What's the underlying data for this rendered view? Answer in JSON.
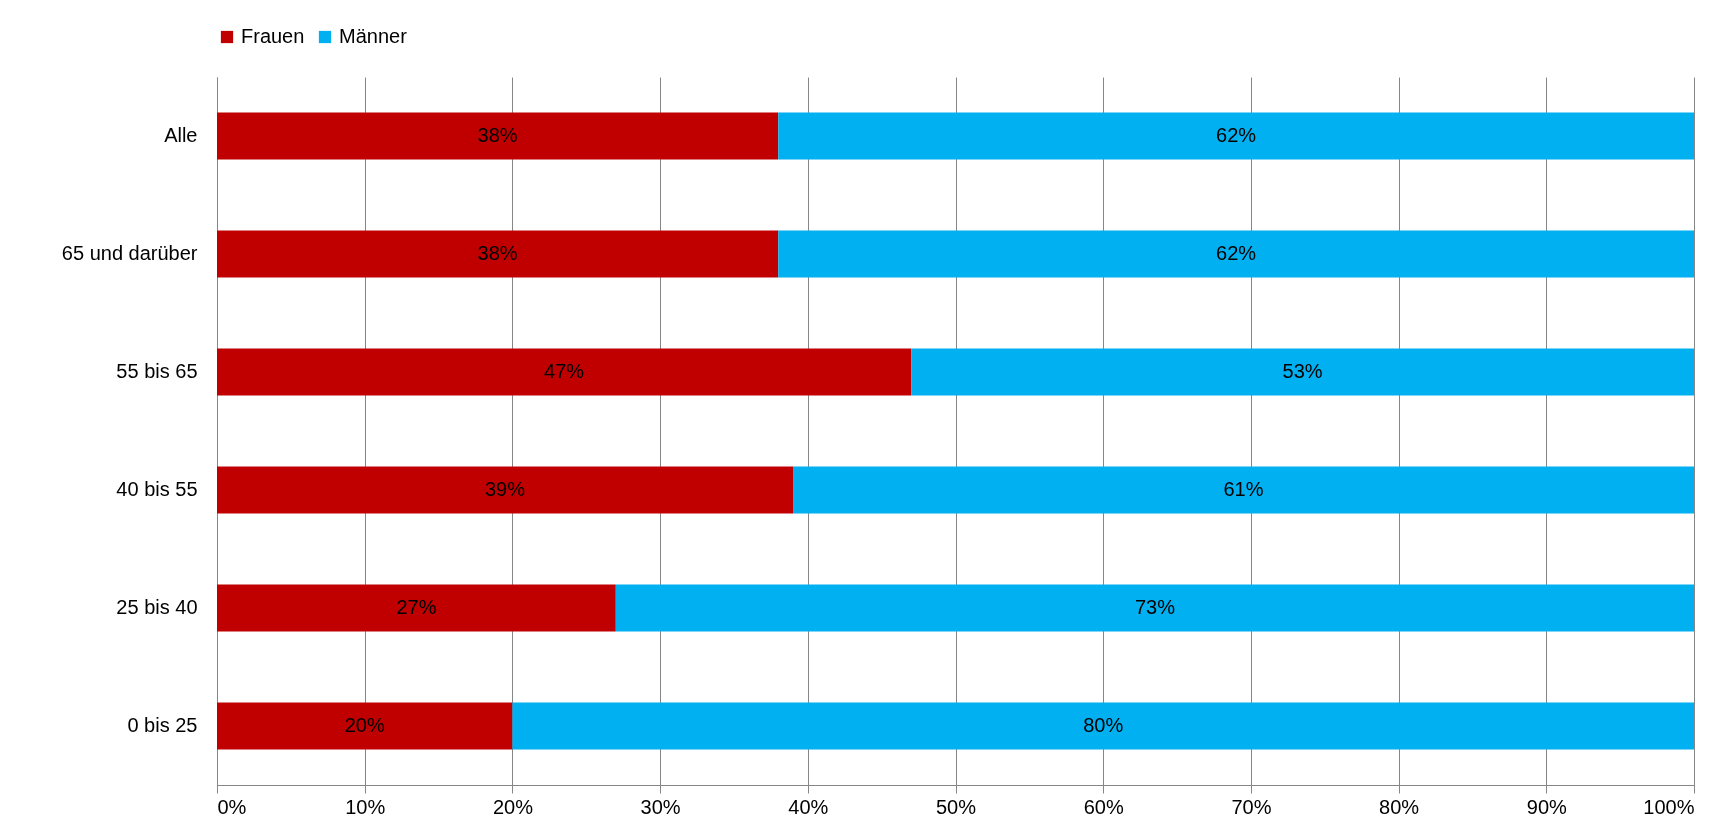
{
  "chart_data": {
    "type": "bar",
    "orientation": "horizontal",
    "stacked": true,
    "categories": [
      "Alle",
      "65 und darüber",
      "55 bis 65",
      "40 bis 55",
      "25 bis 40",
      "0 bis 25"
    ],
    "series": [
      {
        "name": "Frauen",
        "color": "#c00000",
        "values": [
          38,
          38,
          47,
          39,
          27,
          20
        ],
        "value_labels": [
          "38%",
          "38%",
          "47%",
          "39%",
          "27%",
          "20%"
        ]
      },
      {
        "name": "Männer",
        "color": "#00b0f0",
        "values": [
          62,
          62,
          53,
          61,
          73,
          80
        ],
        "value_labels": [
          "62%",
          "62%",
          "53%",
          "61%",
          "73%",
          "80%"
        ]
      }
    ],
    "xlim": [
      0,
      100
    ],
    "xticks": [
      {
        "value": 0,
        "label": "0%"
      },
      {
        "value": 10,
        "label": "10%"
      },
      {
        "value": 20,
        "label": "20%"
      },
      {
        "value": 30,
        "label": "30%"
      },
      {
        "value": 40,
        "label": "40%"
      },
      {
        "value": 50,
        "label": "50%"
      },
      {
        "value": 60,
        "label": "60%"
      },
      {
        "value": 70,
        "label": "70%"
      },
      {
        "value": 80,
        "label": "80%"
      },
      {
        "value": 90,
        "label": "90%"
      },
      {
        "value": 100,
        "label": "100%"
      }
    ],
    "grid": "x",
    "legend": "top"
  }
}
